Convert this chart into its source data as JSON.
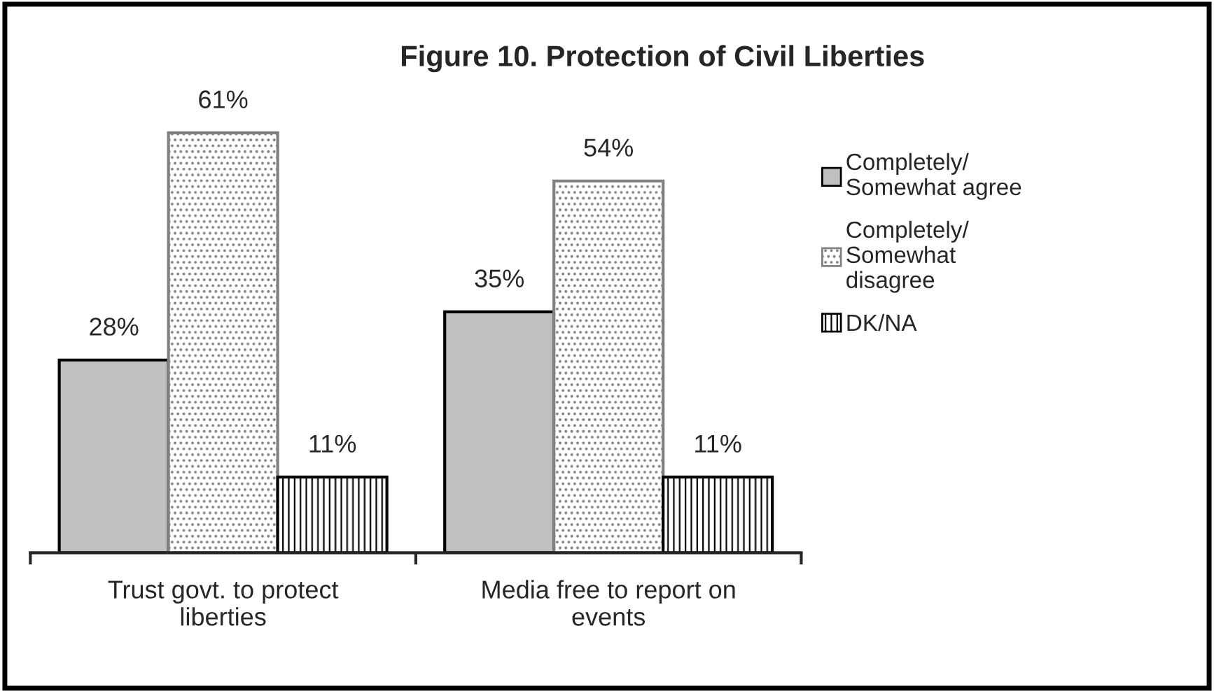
{
  "chart_data": {
    "type": "bar",
    "title": "Figure 10. Protection of Civil Liberties",
    "categories": [
      "Trust govt. to protect liberties",
      "Media free to report on events"
    ],
    "series": [
      {
        "name": "Completely/ Somewhat agree",
        "color": "#c0c0c0",
        "values": [
          28,
          35
        ],
        "value_labels": [
          "28%",
          "35%"
        ]
      },
      {
        "name": "Completely/ Somewhat disagree",
        "color": "#808080",
        "values": [
          61,
          54
        ],
        "value_labels": [
          "61%",
          "54%"
        ]
      },
      {
        "name": "DK/NA",
        "color": "#000000",
        "values": [
          11,
          11
        ],
        "value_labels": [
          "11%",
          "11%"
        ]
      }
    ],
    "legend": "right",
    "grid": false
  }
}
